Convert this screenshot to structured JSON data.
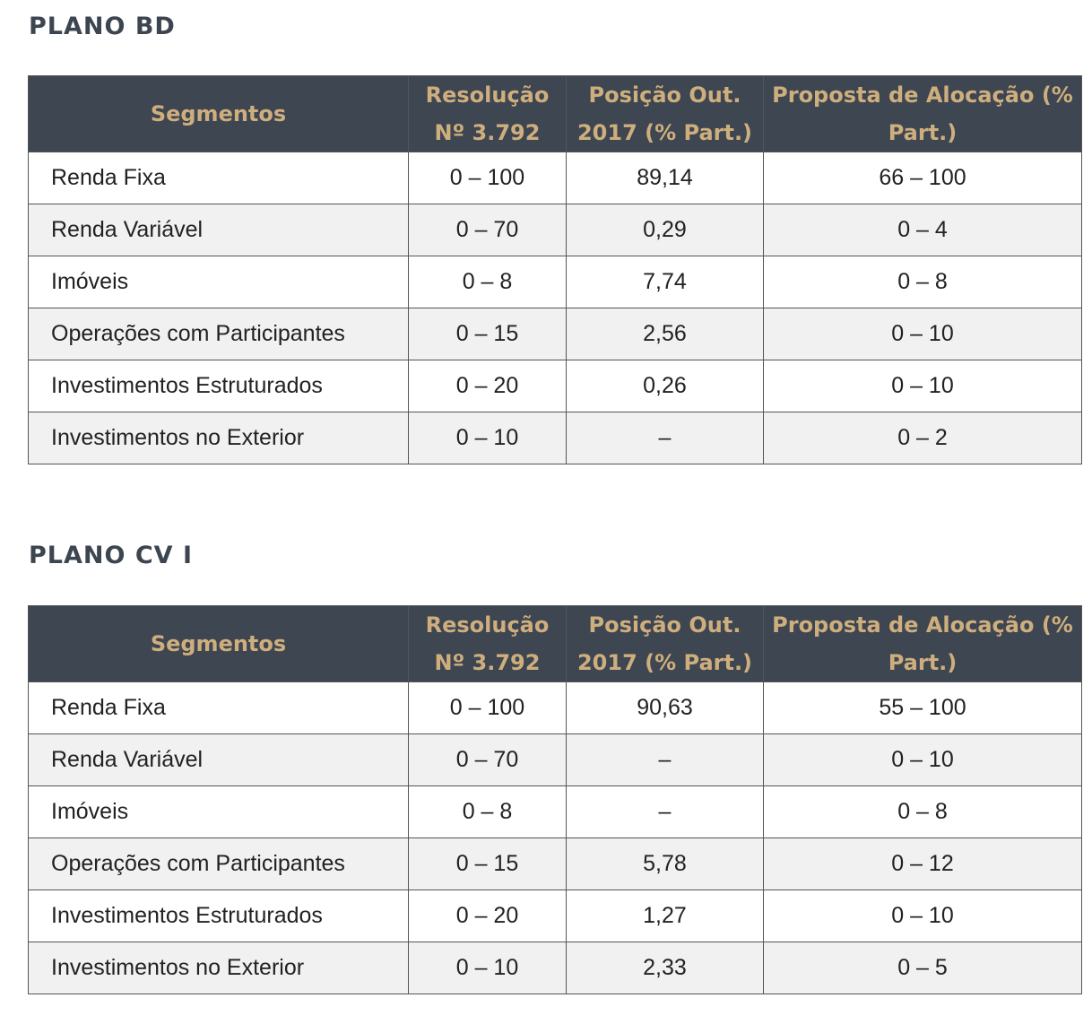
{
  "tables": [
    {
      "title": "PLANO BD",
      "headers": [
        "Segmentos",
        "Resolução Nº 3.792",
        "Posição Out. 2017 (% Part.)",
        "Proposta de Alocação (% Part.)"
      ],
      "rows": [
        {
          "segment": "Renda Fixa",
          "resolucao": "0 – 100",
          "posicao": "89,14",
          "proposta": "66 – 100"
        },
        {
          "segment": "Renda Variável",
          "resolucao": "0 – 70",
          "posicao": "0,29",
          "proposta": "0 – 4"
        },
        {
          "segment": "Imóveis",
          "resolucao": "0 – 8",
          "posicao": "7,74",
          "proposta": "0 – 8"
        },
        {
          "segment": "Operações com Participantes",
          "resolucao": "0 – 15",
          "posicao": "2,56",
          "proposta": "0 – 10"
        },
        {
          "segment": "Investimentos Estruturados",
          "resolucao": "0 – 20",
          "posicao": "0,26",
          "proposta": "0 – 10"
        },
        {
          "segment": "Investimentos no Exterior",
          "resolucao": "0 – 10",
          "posicao": "–",
          "proposta": "0 – 2"
        }
      ]
    },
    {
      "title": "PLANO CV I",
      "headers": [
        "Segmentos",
        "Resolução Nº 3.792",
        "Posição Out. 2017 (% Part.)",
        "Proposta de Alocação (% Part.)"
      ],
      "rows": [
        {
          "segment": "Renda Fixa",
          "resolucao": "0 – 100",
          "posicao": "90,63",
          "proposta": "55 – 100"
        },
        {
          "segment": "Renda Variável",
          "resolucao": "0 – 70",
          "posicao": "–",
          "proposta": "0 – 10"
        },
        {
          "segment": "Imóveis",
          "resolucao": "0 – 8",
          "posicao": "–",
          "proposta": "0 – 8"
        },
        {
          "segment": "Operações com Participantes",
          "resolucao": "0 – 15",
          "posicao": "5,78",
          "proposta": "0 – 12"
        },
        {
          "segment": "Investimentos Estruturados",
          "resolucao": "0 – 20",
          "posicao": "1,27",
          "proposta": "0 – 10"
        },
        {
          "segment": "Investimentos no Exterior",
          "resolucao": "0 – 10",
          "posicao": "2,33",
          "proposta": "0 – 5"
        }
      ]
    }
  ]
}
